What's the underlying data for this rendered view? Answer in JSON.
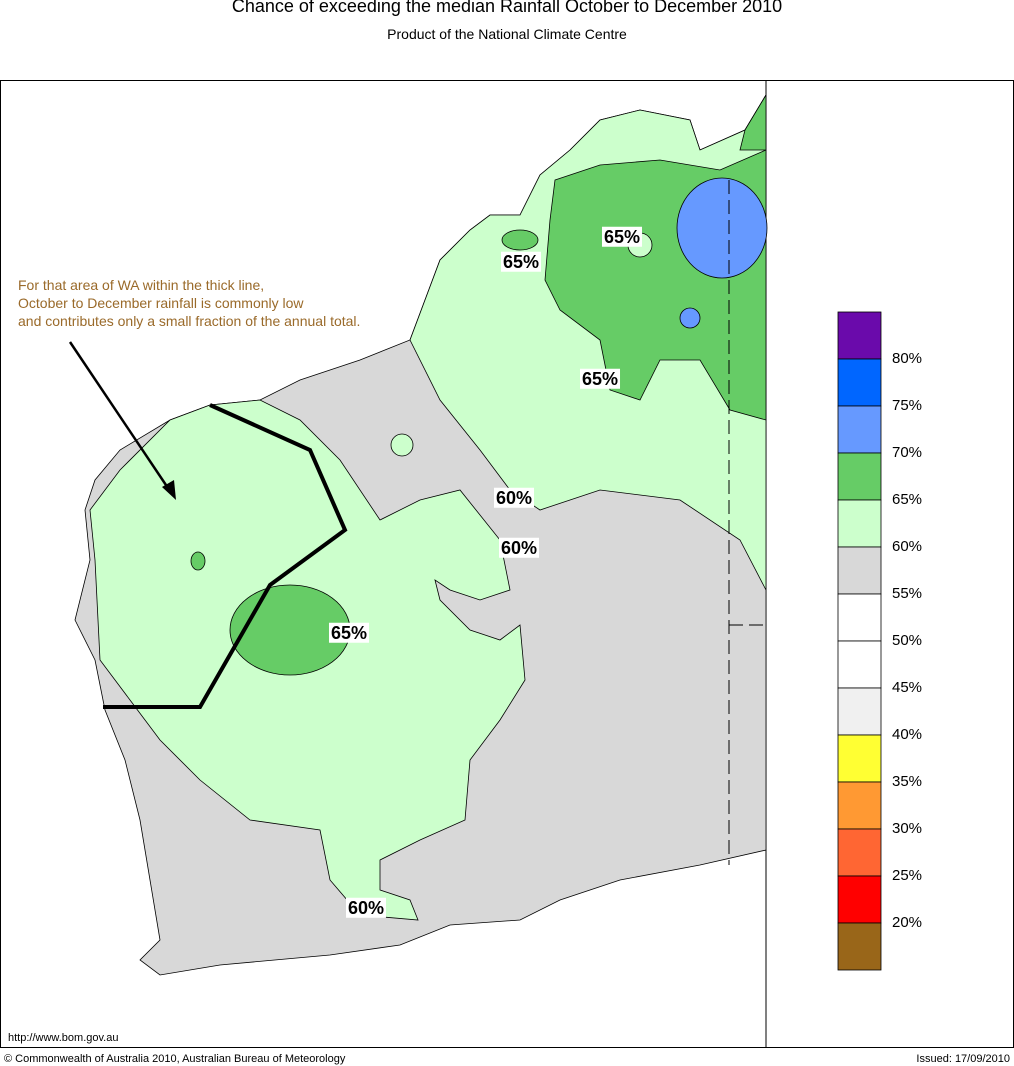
{
  "header": {
    "title": "Chance of exceeding the median Rainfall October to December 2010",
    "subtitle": "Product of the National Climate Centre"
  },
  "annotation": [
    "For that area of WA within the thick line,",
    "October to December rainfall is commonly low",
    "and contributes only a small fraction of the annual total."
  ],
  "contour_labels": [
    "65%",
    "65%",
    "65%",
    "60%",
    "60%",
    "65%",
    "60%"
  ],
  "legend": {
    "colors": [
      "#6a0aab",
      "#0066ff",
      "#6699ff",
      "#66cc66",
      "#ccffcc",
      "#d8d8d8",
      "#ffffff",
      "#ffffff",
      "#f0f0f0",
      "#ffff33",
      "#ff9933",
      "#ff6633",
      "#ff0000",
      "#996619"
    ],
    "labels": [
      "80%",
      "75%",
      "70%",
      "65%",
      "60%",
      "55%",
      "50%",
      "45%",
      "40%",
      "35%",
      "30%",
      "25%",
      "20%"
    ]
  },
  "footer": {
    "url": "http://www.bom.gov.au",
    "copyright": "© Commonwealth of Australia 2010, Australian Bureau of Meteorology",
    "issued": "Issued: 17/09/2010"
  }
}
